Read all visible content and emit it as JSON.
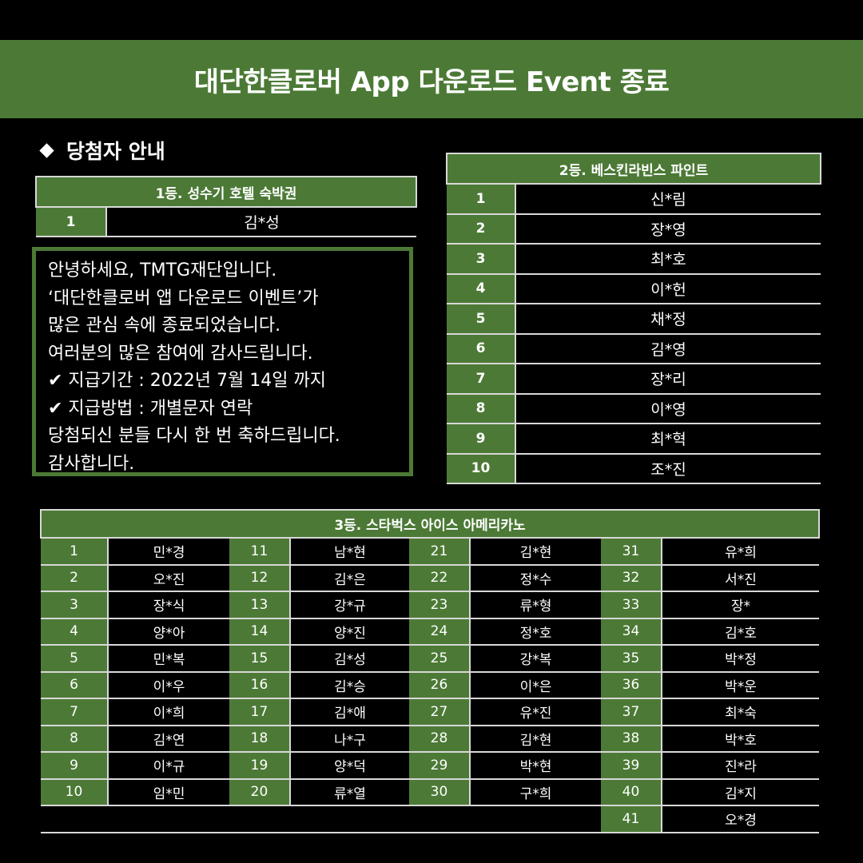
{
  "banner": {
    "title": "대단한클로버 App 다운로드 Event 종료"
  },
  "section": {
    "title": "당첨자 안내",
    "bullet_icon": "diamond-icon"
  },
  "prize1": {
    "title": "1등. 성수기 호텔 숙박권",
    "winners": [
      {
        "no": "1",
        "name": "김*성"
      }
    ]
  },
  "prize2": {
    "title": "2등. 베스킨라빈스 파인트",
    "winners": [
      {
        "no": "1",
        "name": "신*림"
      },
      {
        "no": "2",
        "name": "장*영"
      },
      {
        "no": "3",
        "name": "최*호"
      },
      {
        "no": "4",
        "name": "이*헌"
      },
      {
        "no": "5",
        "name": "채*정"
      },
      {
        "no": "6",
        "name": "김*영"
      },
      {
        "no": "7",
        "name": "장*리"
      },
      {
        "no": "8",
        "name": "이*영"
      },
      {
        "no": "9",
        "name": "최*혁"
      },
      {
        "no": "10",
        "name": "조*진"
      }
    ]
  },
  "notice": {
    "lines": [
      "안녕하세요, TMTG재단입니다.",
      "‘대단한클로버 앱 다운로드 이벤트’가",
      "많은 관심 속에 종료되었습니다.",
      "여러분의 많은 참여에 감사드립니다.",
      "✔ 지급기간 : 2022년 7월 14일 까지",
      "✔ 지급방법 : 개별문자 연락",
      "당첨되신 분들 다시 한 번 축하드립니다.",
      "감사합니다."
    ]
  },
  "prize3": {
    "title": "3등. 스타벅스 아이스 아메리카노",
    "winners": [
      {
        "no": "1",
        "name": "민*경"
      },
      {
        "no": "2",
        "name": "오*진"
      },
      {
        "no": "3",
        "name": "장*식"
      },
      {
        "no": "4",
        "name": "양*아"
      },
      {
        "no": "5",
        "name": "민*복"
      },
      {
        "no": "6",
        "name": "이*우"
      },
      {
        "no": "7",
        "name": "이*희"
      },
      {
        "no": "8",
        "name": "김*연"
      },
      {
        "no": "9",
        "name": "이*규"
      },
      {
        "no": "10",
        "name": "임*민"
      },
      {
        "no": "11",
        "name": "남*현"
      },
      {
        "no": "12",
        "name": "김*은"
      },
      {
        "no": "13",
        "name": "강*규"
      },
      {
        "no": "14",
        "name": "양*진"
      },
      {
        "no": "15",
        "name": "김*성"
      },
      {
        "no": "16",
        "name": "김*승"
      },
      {
        "no": "17",
        "name": "김*애"
      },
      {
        "no": "18",
        "name": "나*구"
      },
      {
        "no": "19",
        "name": "양*덕"
      },
      {
        "no": "20",
        "name": "류*열"
      },
      {
        "no": "21",
        "name": "김*현"
      },
      {
        "no": "22",
        "name": "정*수"
      },
      {
        "no": "23",
        "name": "류*형"
      },
      {
        "no": "24",
        "name": "정*호"
      },
      {
        "no": "25",
        "name": "강*복"
      },
      {
        "no": "26",
        "name": "이*은"
      },
      {
        "no": "27",
        "name": "유*진"
      },
      {
        "no": "28",
        "name": "김*현"
      },
      {
        "no": "29",
        "name": "박*현"
      },
      {
        "no": "30",
        "name": "구*희"
      },
      {
        "no": "31",
        "name": "유*희"
      },
      {
        "no": "32",
        "name": "서*진"
      },
      {
        "no": "33",
        "name": "장*"
      },
      {
        "no": "34",
        "name": "김*호"
      },
      {
        "no": "35",
        "name": "박*정"
      },
      {
        "no": "36",
        "name": "박*운"
      },
      {
        "no": "37",
        "name": "최*숙"
      },
      {
        "no": "38",
        "name": "박*호"
      },
      {
        "no": "39",
        "name": "진*라"
      },
      {
        "no": "40",
        "name": "김*지"
      },
      {
        "no": "41",
        "name": "오*경"
      }
    ]
  },
  "colors": {
    "accent": "#4c7a36",
    "background": "#000000",
    "text": "#ffffff"
  }
}
